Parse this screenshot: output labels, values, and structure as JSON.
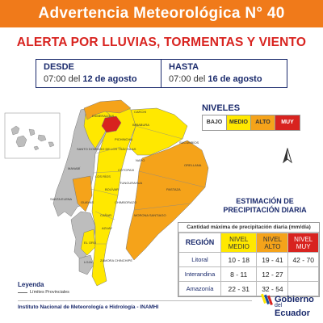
{
  "header": {
    "title": "Advertencia Meteorológica N° 40"
  },
  "alert": {
    "title": "ALERTA POR LLUVIAS, TORMENTAS Y VIENTO"
  },
  "dates": {
    "from_label": "DESDE",
    "from_time": "07:00 del",
    "from_date": "12 de agosto",
    "to_label": "HASTA",
    "to_time": "07:00 del",
    "to_date": "16 de agosto"
  },
  "levels": {
    "title": "NIVELES",
    "items": [
      {
        "label": "BAJO",
        "color": "#ffffff"
      },
      {
        "label": "MEDIO",
        "color": "#ffe800"
      },
      {
        "label": "ALTO",
        "color": "#f5a31a"
      },
      {
        "label": "MUY",
        "color": "#d8231f"
      }
    ]
  },
  "map": {
    "colors": {
      "bajo": "#bdbdbd",
      "medio": "#ffe800",
      "alto": "#f5a31a",
      "muy": "#d8231f"
    },
    "place_labels": {
      "esmeraldas": "ESMERALDAS",
      "carchi": "CARCHI",
      "imbabura": "IMBABURA",
      "sto_domingo": "SANTO DOMINGO DE LOS TSÁCHILAS",
      "pichincha": "PICHINCHA",
      "sucumbios": "SUCUMBÍOS",
      "manabi": "MANABÍ",
      "napo": "NAPO",
      "orellana": "ORELLANA",
      "cotopaxi": "COTOPAXI",
      "los_rios": "LOS RÍOS",
      "tungurahua": "TUNGURAHUA",
      "bolivar": "BOLÍVAR",
      "pastaza": "PASTAZA",
      "santa_elena": "SANTA ELENA",
      "guayas": "GUAYAS",
      "chimborazo": "CHIMBORAZO",
      "canar": "CAÑAR",
      "morona": "MORONA SANTIAGO",
      "azuay": "AZUAY",
      "el_oro": "EL ORO",
      "zamora": "ZAMORA CHINCHIPE",
      "loja": "LOJA"
    }
  },
  "estimation": {
    "title": "ESTIMACIÓN DE PRECIPITACIÓN DIARIA",
    "caption": "Cantidad máxima de precipitación diaria (mm/día)",
    "headers": {
      "region": "REGIÓN",
      "medio": "NIVEL MEDIO",
      "alto": "NIVEL ALTO",
      "muy": "NIVEL MUY"
    },
    "rows": [
      {
        "region": "Litoral",
        "medio": "10 - 18",
        "alto": "19 - 41",
        "muy": "42 - 70"
      },
      {
        "region": "Interandina",
        "medio": "8 - 11",
        "alto": "12 - 27",
        "muy": ""
      },
      {
        "region": "Amazonía",
        "medio": "22 - 31",
        "alto": "32 - 54",
        "muy": ""
      }
    ]
  },
  "legend": {
    "title": "Leyenda",
    "item": "Límites Provinciales"
  },
  "footer": {
    "institute": "Instituto Nacional de Meteorología e Hidrología - INAMHI"
  },
  "logo": {
    "line1": "Gobierno",
    "line2": "del",
    "line3": "Ecuador"
  }
}
